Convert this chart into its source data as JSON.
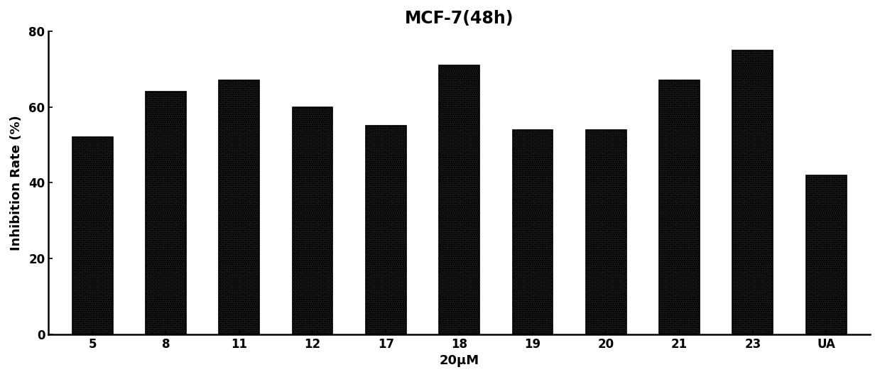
{
  "title": "MCF-7(48h)",
  "xlabel": "20μM",
  "ylabel": "Inhibition Rate (%)",
  "categories": [
    "5",
    "8",
    "11",
    "12",
    "17",
    "18",
    "19",
    "20",
    "21",
    "23",
    "UA"
  ],
  "values": [
    52,
    64,
    67,
    60,
    55,
    71,
    54,
    54,
    67,
    75,
    42
  ],
  "ylim": [
    0,
    80
  ],
  "yticks": [
    0,
    20,
    40,
    60,
    80
  ],
  "bar_color": "#1a1a1a",
  "hatch_color": "white",
  "background_color": "#ffffff",
  "title_fontsize": 17,
  "label_fontsize": 13,
  "tick_fontsize": 12,
  "bar_width": 0.55
}
